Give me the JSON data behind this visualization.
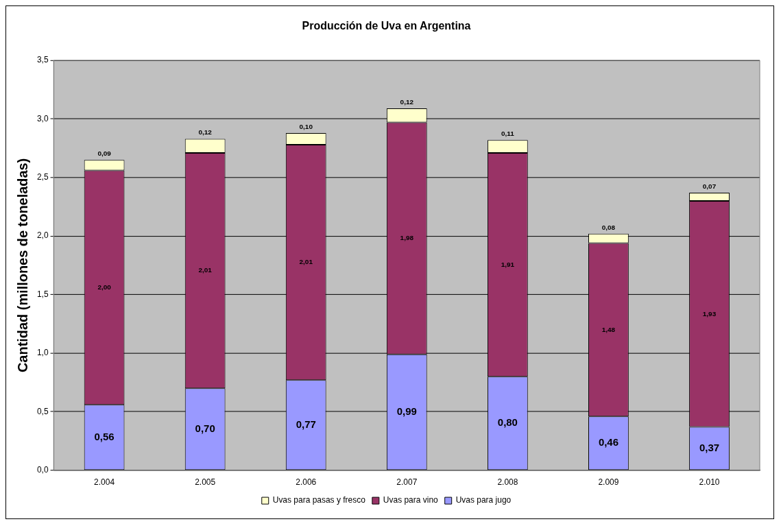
{
  "chart_data": {
    "type": "bar",
    "title": "Producción de Uva en Argentina",
    "ylabel": "Cantidad (millones de toneladas)",
    "categories": [
      "2.004",
      "2.005",
      "2.006",
      "2.007",
      "2.008",
      "2.009",
      "2.010"
    ],
    "stacked": true,
    "series": [
      {
        "name": "Uvas para jugo",
        "color": "#9999ff",
        "values": [
          0.56,
          0.7,
          0.77,
          0.99,
          0.8,
          0.46,
          0.37
        ],
        "value_labels": [
          "0,56",
          "0,70",
          "0,77",
          "0,99",
          "0,80",
          "0,46",
          "0,37"
        ]
      },
      {
        "name": "Uvas para vino",
        "color": "#993366",
        "values": [
          2.0,
          2.01,
          2.01,
          1.98,
          1.91,
          1.48,
          1.93
        ],
        "value_labels": [
          "2,00",
          "2,01",
          "2,01",
          "1,98",
          "1,91",
          "1,48",
          "1,93"
        ]
      },
      {
        "name": "Uvas para pasas y fresco",
        "color": "#ffffcc",
        "values": [
          0.09,
          0.12,
          0.1,
          0.12,
          0.11,
          0.08,
          0.07
        ],
        "value_labels": [
          "0,09",
          "0,12",
          "0,10",
          "0,12",
          "0,11",
          "0,08",
          "0,07"
        ]
      }
    ],
    "ylim": [
      0,
      3.5
    ],
    "yticks": [
      {
        "value": 0,
        "label": "0,0"
      },
      {
        "value": 0.5,
        "label": "0,5"
      },
      {
        "value": 1,
        "label": "1,0"
      },
      {
        "value": 1.5,
        "label": "1,5"
      },
      {
        "value": 2,
        "label": "2,0"
      },
      {
        "value": 2.5,
        "label": "2,5"
      },
      {
        "value": 3,
        "label": "3,0"
      },
      {
        "value": 3.5,
        "label": "3,5"
      }
    ],
    "grid": "y",
    "legend": "bottom"
  }
}
